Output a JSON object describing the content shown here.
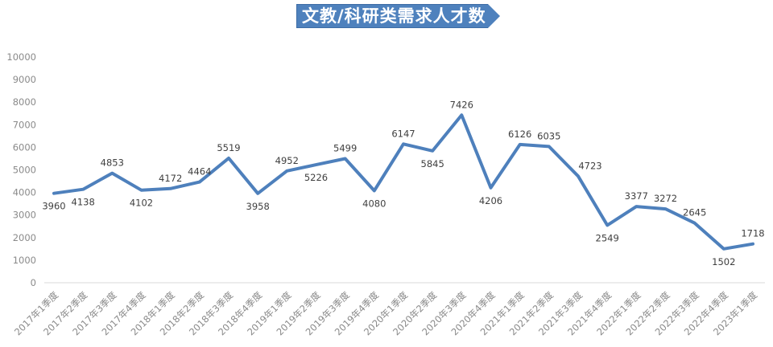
{
  "title": {
    "text": "文教/科研类需求人才数",
    "bg_color": "#4E81BD",
    "text_color": "#FFFFFF"
  },
  "chart_data": {
    "type": "line",
    "title": "文教/科研类需求人才数",
    "categories": [
      "2017年1季度",
      "2017年2季度",
      "2017年3季度",
      "2017年4季度",
      "2018年1季度",
      "2018年2季度",
      "2018年3季度",
      "2018年4季度",
      "2019年1季度",
      "2019年2季度",
      "2019年3季度",
      "2019年4季度",
      "2020年1季度",
      "2020年2季度",
      "2020年3季度",
      "2020年4季度",
      "2021年1季度",
      "2021年2季度",
      "2021年3季度",
      "2021年4季度",
      "2022年1季度",
      "2022年2季度",
      "2022年3季度",
      "2022年4季度",
      "2023年1季度"
    ],
    "values": [
      3960,
      4138,
      4853,
      4102,
      4172,
      4464,
      5519,
      3958,
      4952,
      5226,
      5499,
      4080,
      6147,
      5845,
      7426,
      4206,
      6126,
      6035,
      4723,
      2549,
      3377,
      3272,
      2645,
      1502,
      1718
    ],
    "label_positions": [
      "below",
      "below",
      "above",
      "below",
      "above",
      "above",
      "above",
      "below",
      "above",
      "below",
      "above",
      "below",
      "above",
      "below",
      "above",
      "below",
      "above",
      "above",
      "above-right",
      "below",
      "above",
      "above",
      "above",
      "below",
      "above"
    ],
    "xlabel": "",
    "ylabel": "",
    "ylim": [
      0,
      10000
    ],
    "y_ticks": [
      0,
      1000,
      2000,
      3000,
      4000,
      5000,
      6000,
      7000,
      8000,
      9000,
      10000
    ],
    "grid": false,
    "legend": "none",
    "line_color": "#4E80BC",
    "data_label_color": "#3F3F3F",
    "axis_label_color": "#8A8A8A",
    "axis_line_color": "#D9D9D9"
  }
}
